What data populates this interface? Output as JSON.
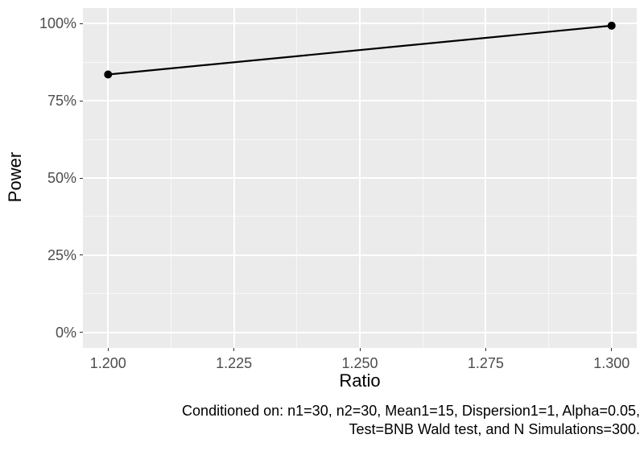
{
  "chart_data": {
    "type": "line",
    "title": "",
    "xlabel": "Ratio",
    "ylabel": "Power",
    "xlim": [
      1.195,
      1.305
    ],
    "ylim": [
      -0.05,
      1.05
    ],
    "grid": true,
    "legend": "none",
    "x_ticks": {
      "values": [
        1.2,
        1.225,
        1.25,
        1.275,
        1.3
      ],
      "labels": [
        "1.200",
        "1.225",
        "1.250",
        "1.275",
        "1.300"
      ]
    },
    "y_ticks": {
      "values": [
        0,
        0.25,
        0.5,
        0.75,
        1.0
      ],
      "labels": [
        "0%",
        "25%",
        "50%",
        "75%",
        "100%"
      ]
    },
    "x_minor_ticks": [
      1.2125,
      1.2375,
      1.2625,
      1.2875
    ],
    "y_minor_ticks": [
      0.125,
      0.375,
      0.625,
      0.875
    ],
    "series": [
      {
        "name": "Power",
        "x": [
          1.2,
          1.3
        ],
        "y": [
          0.835,
          0.993
        ]
      }
    ],
    "caption_lines": [
      "Conditioned on: n1=30, n2=30, Mean1=15, Dispersion1=1, Alpha=0.05,",
      "Test=BNB Wald test, and N Simulations=300."
    ]
  },
  "colors": {
    "panel_bg": "#EBEBEB",
    "grid": "#FFFFFF",
    "tick_label": "#4D4D4D",
    "tick_mark": "#333333",
    "axis_title": "#000000",
    "caption": "#000000",
    "series_line": "#000000",
    "series_point": "#000000"
  }
}
